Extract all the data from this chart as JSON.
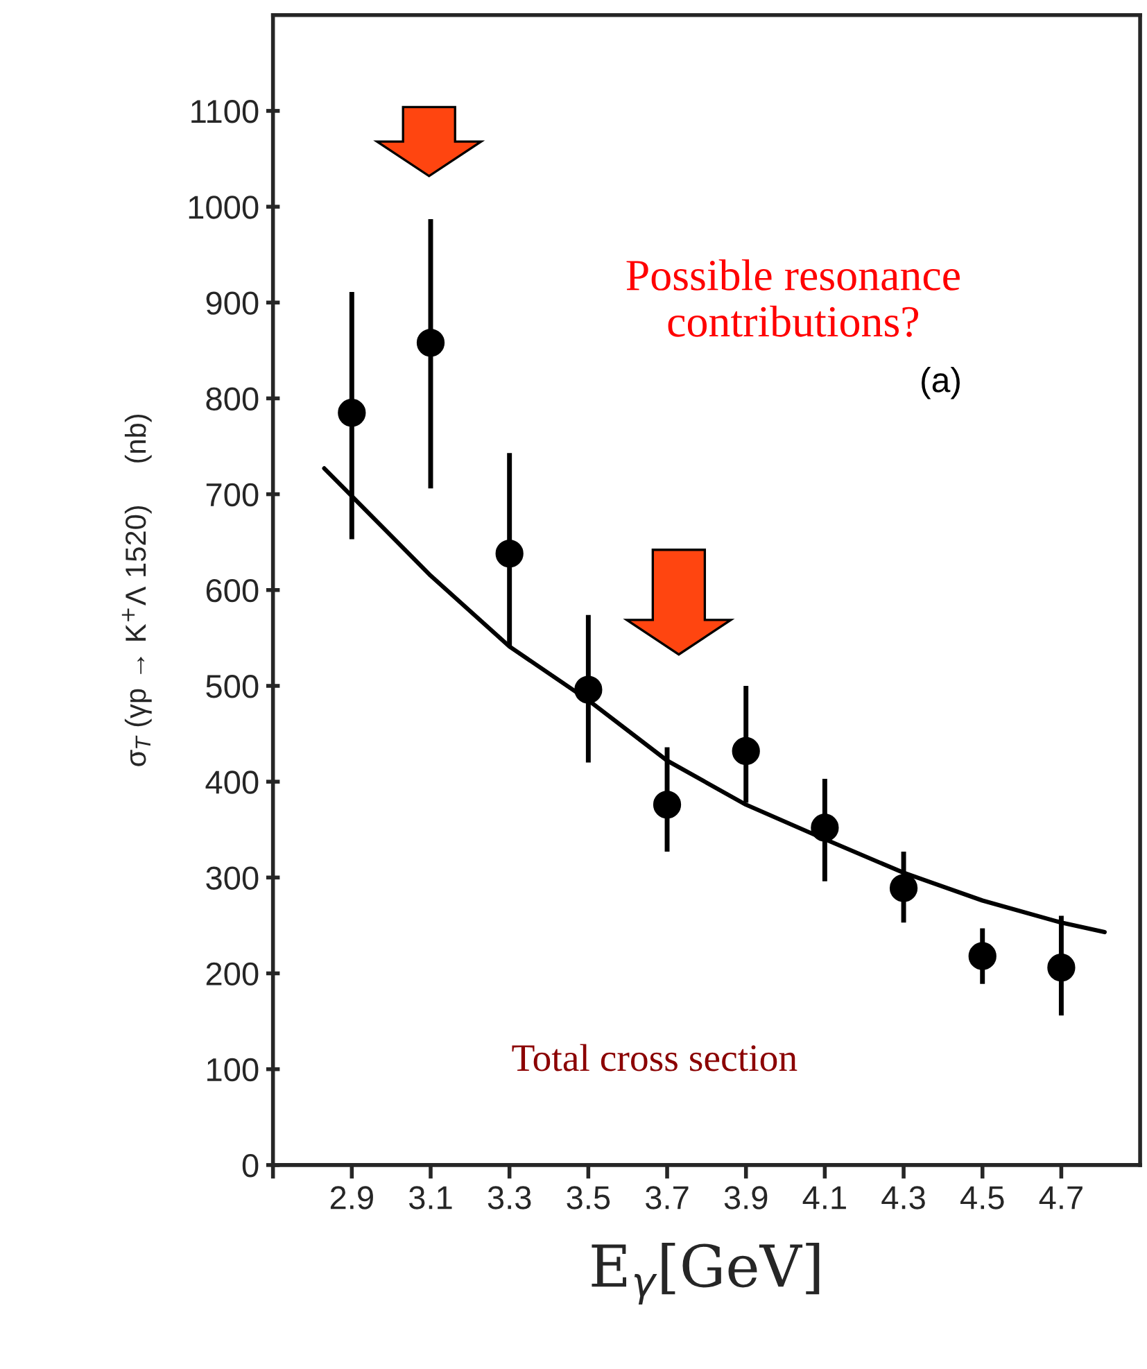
{
  "chart_data": {
    "type": "scatter",
    "xlabel": "E$_{γ}$[GeV]",
    "ylabel": "σ$_{T}$ (γp → K$^{+}$Λ 1520)     (nb)",
    "annotations": [
      "Possible resonance\ncontributions?",
      "(a)",
      "Total cross section"
    ],
    "series": [
      {
        "color": "#000000",
        "marker": "circle",
        "x": [
          2.9,
          3.1,
          3.3,
          3.5,
          3.7,
          3.9,
          4.1,
          4.3,
          4.5,
          4.7
        ],
        "values": [
          785,
          858,
          638,
          496,
          376,
          432,
          352,
          289,
          218,
          206
        ],
        "errors": [
          [
            653,
            911
          ],
          [
            706,
            987
          ],
          [
            541,
            743
          ],
          [
            420,
            574
          ],
          [
            327,
            436
          ],
          [
            378,
            500
          ],
          [
            296,
            403
          ],
          [
            253,
            327
          ],
          [
            189,
            247
          ],
          [
            156,
            260
          ]
        ]
      },
      {
        "type": "line",
        "color": "#000000",
        "marker": "none",
        "line_style": "solid",
        "x": [
          2.83,
          2.9,
          3.1,
          3.3,
          3.5,
          3.7,
          3.9,
          4.1,
          4.3,
          4.5,
          4.7,
          4.81
        ],
        "values": [
          727,
          698,
          615,
          541,
          485,
          422,
          376,
          340,
          305,
          276,
          253,
          243
        ]
      }
    ],
    "xlim": [
      2.7,
      4.9
    ],
    "xticks": [
      {
        "value": 2.7,
        "label": null
      },
      2.9,
      3.1,
      3.3,
      3.5,
      3.7,
      3.9,
      4.1,
      4.3,
      4.5,
      4.7
    ],
    "ylim": [
      0,
      1200
    ],
    "yticks": [
      0,
      100,
      200,
      300,
      400,
      500,
      600,
      700,
      800,
      900,
      1000,
      1100
    ],
    "grid": false,
    "legend": false
  }
}
